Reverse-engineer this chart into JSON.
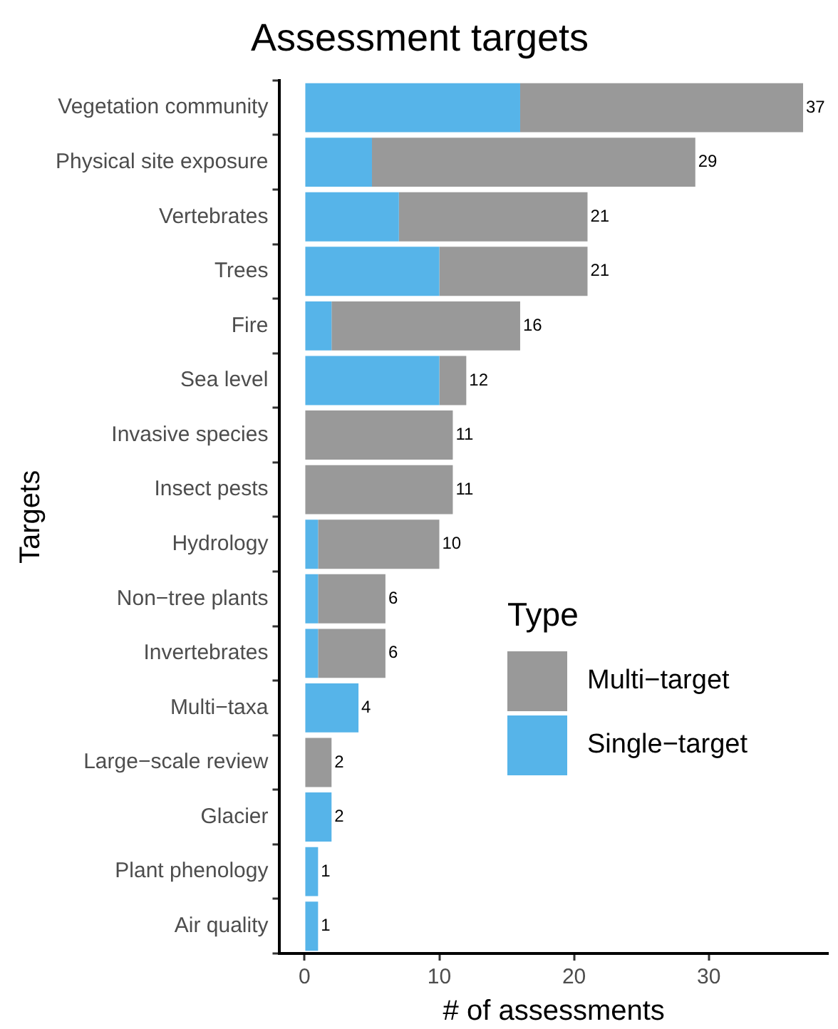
{
  "chart_data": {
    "type": "bar",
    "orientation": "horizontal",
    "stacked": true,
    "title": "Assessment targets",
    "xlabel": "# of assessments",
    "ylabel": "Targets",
    "legend_title": "Type",
    "legend": "bottom right",
    "categories": [
      "Vegetation community",
      "Physical site exposure",
      "Vertebrates",
      "Trees",
      "Fire",
      "Sea level",
      "Invasive species",
      "Insect pests",
      "Hydrology",
      "Non−tree plants",
      "Invertebrates",
      "Multi−taxa",
      "Large−scale review",
      "Glacier",
      "Plant phenology",
      "Air quality"
    ],
    "series": [
      {
        "name": "Single−target",
        "color": "#56b4e9",
        "values": [
          16,
          5,
          7,
          10,
          2,
          10,
          0,
          0,
          1,
          1,
          1,
          4,
          0,
          2,
          1,
          1
        ]
      },
      {
        "name": "Multi−target",
        "color": "#999999",
        "values": [
          21,
          24,
          14,
          11,
          14,
          2,
          11,
          11,
          9,
          5,
          5,
          0,
          2,
          0,
          0,
          0
        ]
      }
    ],
    "totals": [
      "37",
      "29",
      "21",
      "21",
      "16",
      "12",
      "11",
      "11",
      "10",
      "6",
      "6",
      "4",
      "2",
      "2",
      "1",
      "1"
    ],
    "xlim": [
      -1.85,
      38.85
    ],
    "xticks": [
      0,
      10,
      20,
      30
    ],
    "grid": false
  }
}
